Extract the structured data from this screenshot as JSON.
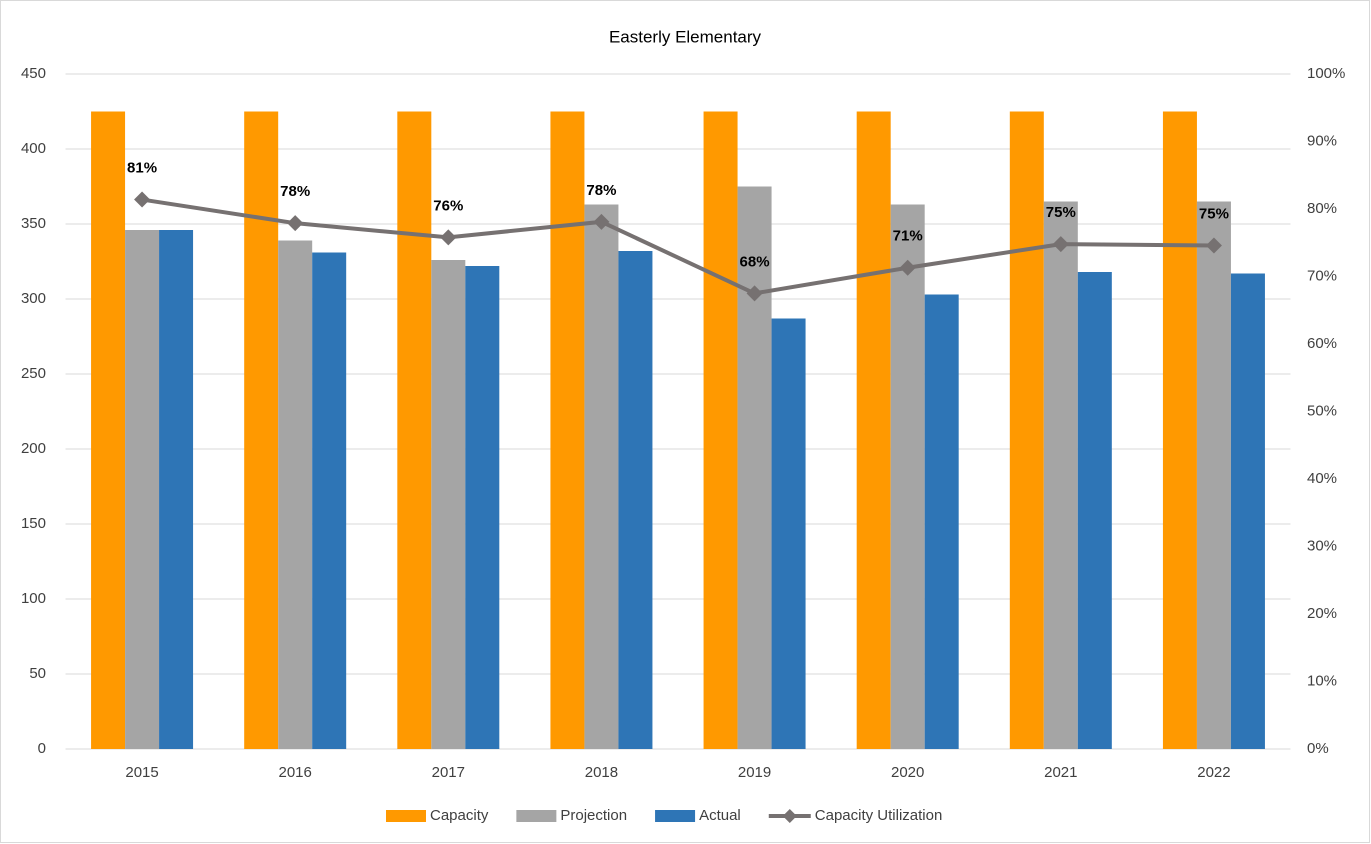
{
  "chart_data": {
    "type": "bar",
    "title": "Easterly Elementary",
    "categories": [
      "2015",
      "2016",
      "2017",
      "2018",
      "2019",
      "2020",
      "2021",
      "2022"
    ],
    "series": [
      {
        "name": "Capacity",
        "color": "#ff9900",
        "values": [
          425,
          425,
          425,
          425,
          425,
          425,
          425,
          425
        ]
      },
      {
        "name": "Projection",
        "color": "#a5a5a5",
        "values": [
          346,
          339,
          326,
          363,
          375,
          363,
          365,
          365
        ]
      },
      {
        "name": "Actual",
        "color": "#2e75b6",
        "values": [
          346,
          331,
          322,
          332,
          287,
          303,
          318,
          317
        ]
      },
      {
        "name": "Capacity Utilization",
        "type": "line",
        "axis": "y2",
        "color": "#767171",
        "values": [
          81.4,
          77.9,
          75.8,
          78.1,
          67.5,
          71.3,
          74.8,
          74.6
        ],
        "value_labels": [
          "81%",
          "78%",
          "76%",
          "78%",
          "68%",
          "71%",
          "75%",
          "75%"
        ]
      }
    ],
    "ylim": [
      0,
      450
    ],
    "yticks": [
      0,
      50,
      100,
      150,
      200,
      250,
      300,
      350,
      400,
      450
    ],
    "y2lim": [
      0,
      100
    ],
    "y2ticks": [
      {
        "value": 0,
        "label": "0%"
      },
      {
        "value": 10,
        "label": "10%"
      },
      {
        "value": 20,
        "label": "20%"
      },
      {
        "value": 30,
        "label": "30%"
      },
      {
        "value": 40,
        "label": "40%"
      },
      {
        "value": 50,
        "label": "50%"
      },
      {
        "value": 60,
        "label": "60%"
      },
      {
        "value": 70,
        "label": "70%"
      },
      {
        "value": 80,
        "label": "80%"
      },
      {
        "value": 90,
        "label": "90%"
      },
      {
        "value": 100,
        "label": "100%"
      }
    ],
    "grid": true,
    "legend": "bottom"
  }
}
